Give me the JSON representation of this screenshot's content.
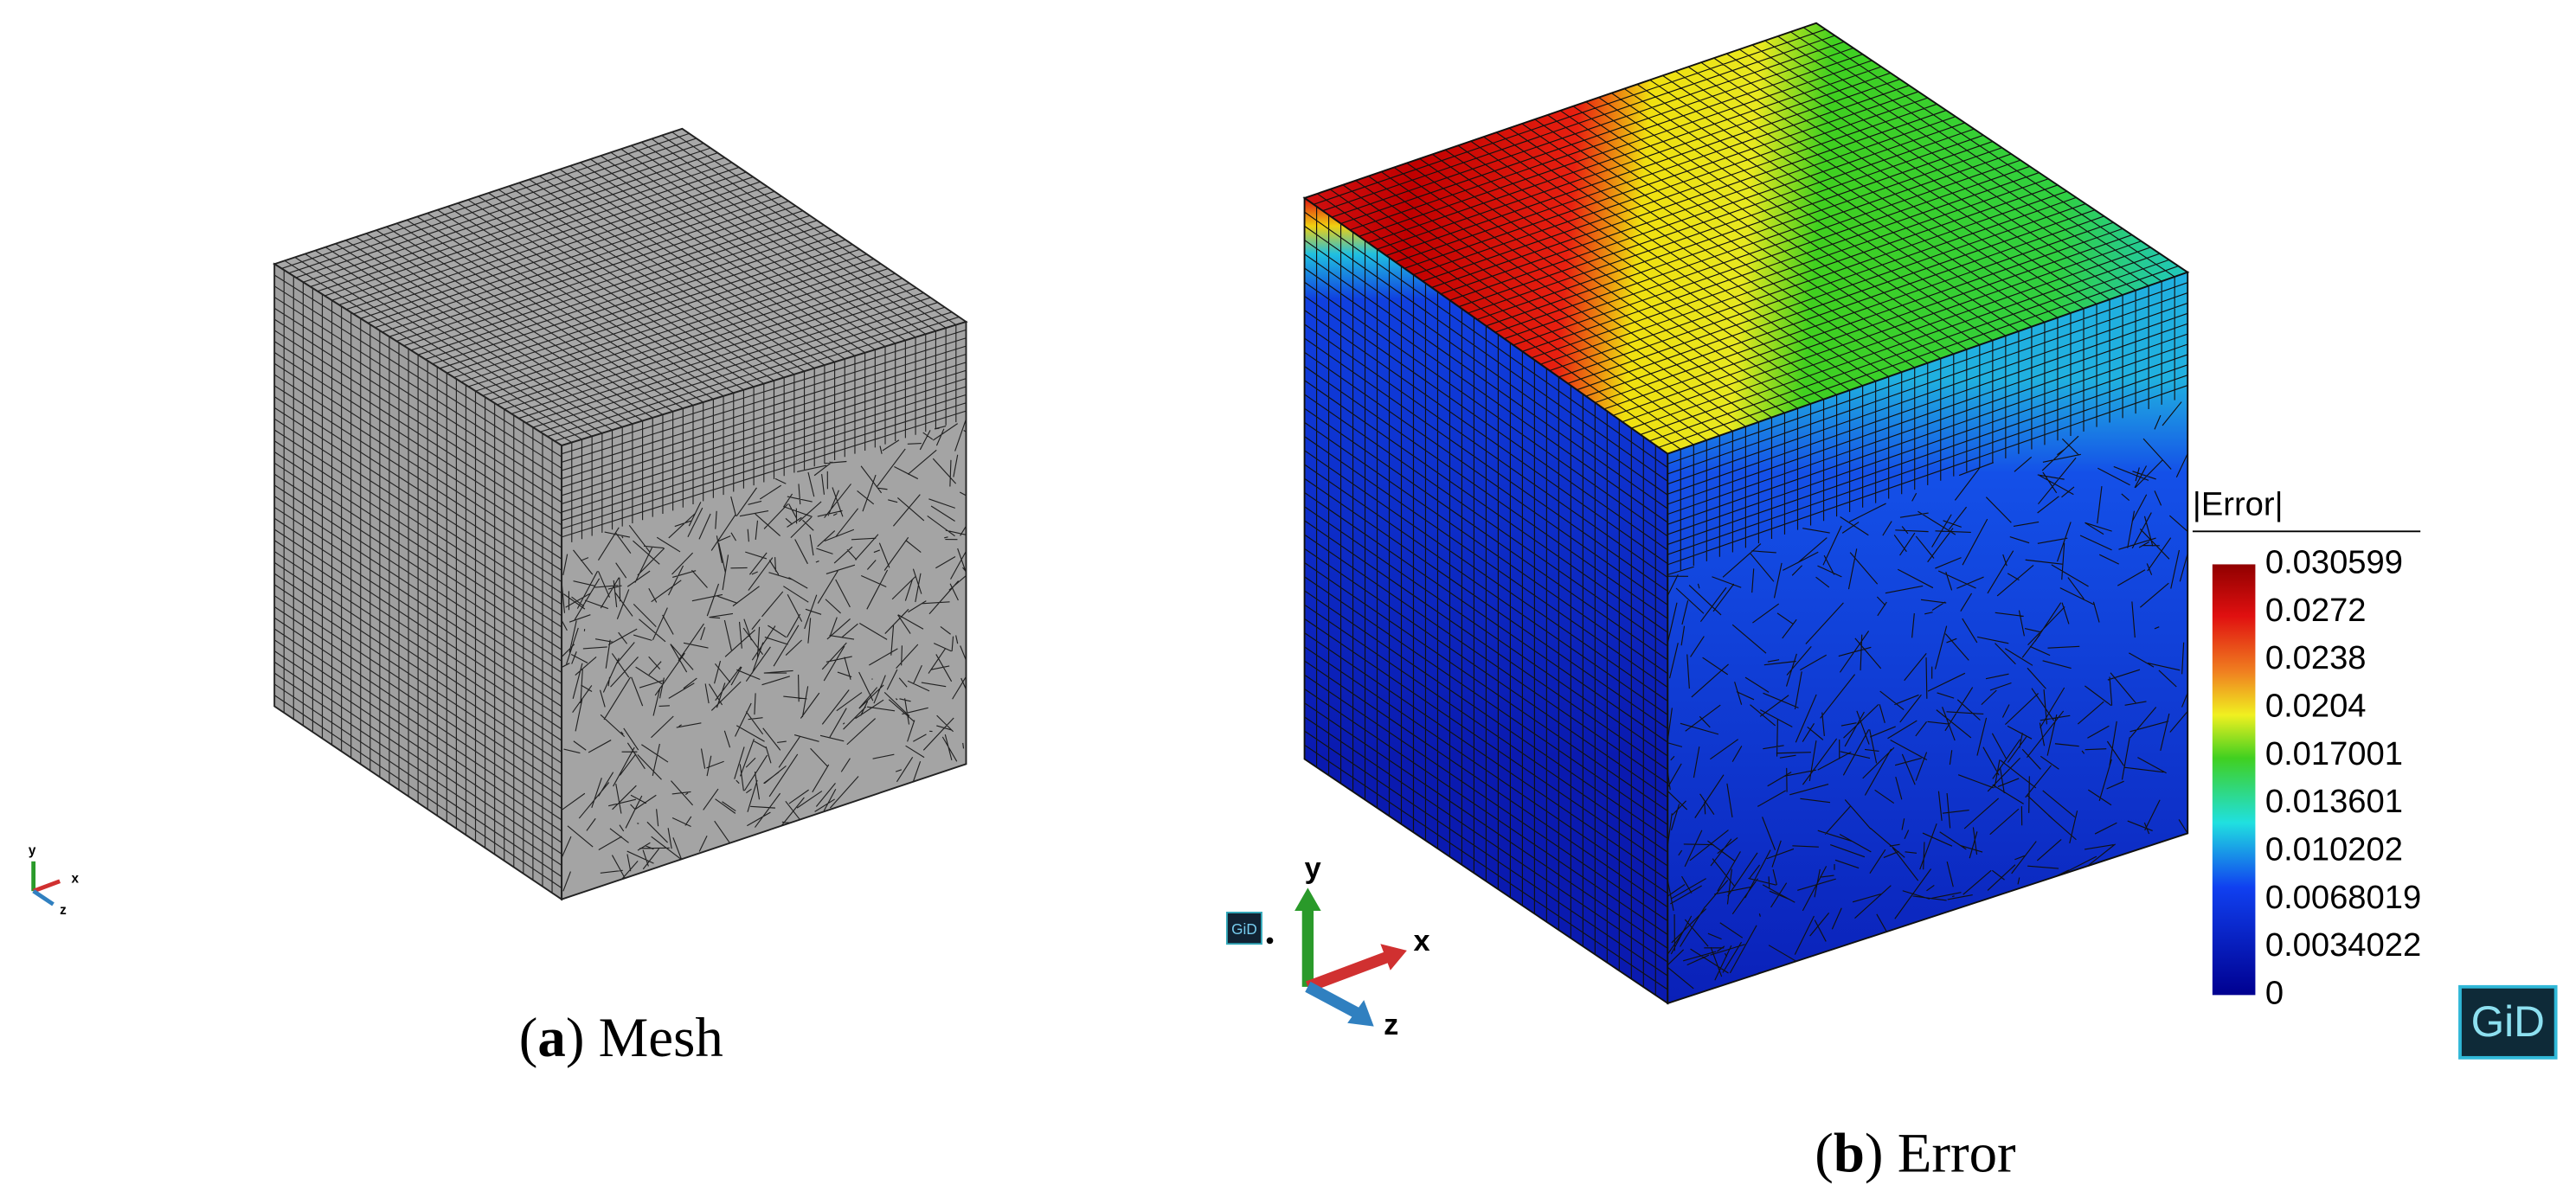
{
  "panels": [
    {
      "caption": [
        "(",
        "a",
        ") Mesh"
      ],
      "axes": {
        "x": "x",
        "y": "y",
        "z": "z"
      }
    },
    {
      "caption": [
        "(",
        "b",
        ") Error"
      ],
      "axes": {
        "x": "x",
        "y": "y",
        "z": "z"
      },
      "logo": "GiD",
      "logo_large": "GiD",
      "legend": {
        "title": "|Error|",
        "labels": [
          "0.030599",
          "0.0272",
          "0.0238",
          "0.0204",
          "0.017001",
          "0.013601",
          "0.010202",
          "0.0068019",
          "0.0034022",
          "0"
        ]
      }
    }
  ]
}
